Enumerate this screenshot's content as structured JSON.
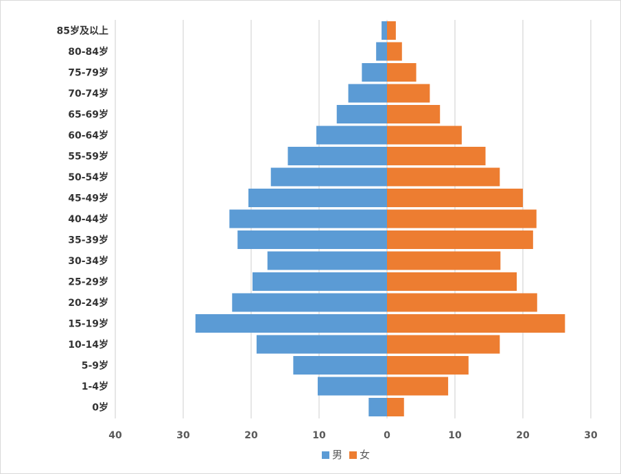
{
  "chart_data": {
    "type": "bar",
    "orientation": "horizontal",
    "layout": "population-pyramid",
    "categories": [
      "0岁",
      "1-4岁",
      "5-9岁",
      "10-14岁",
      "15-19岁",
      "20-24岁",
      "25-29岁",
      "30-34岁",
      "35-39岁",
      "40-44岁",
      "45-49岁",
      "50-54岁",
      "55-59岁",
      "60-64岁",
      "65-69岁",
      "70-74岁",
      "75-79岁",
      "80-84岁",
      "85岁及以上"
    ],
    "series": [
      {
        "name": "男",
        "side": "left",
        "color": "#5b9bd5",
        "values": [
          2.7,
          10.2,
          13.8,
          19.2,
          28.2,
          22.8,
          19.8,
          17.6,
          22.0,
          23.2,
          20.4,
          17.1,
          14.6,
          10.4,
          7.4,
          5.7,
          3.7,
          1.6,
          0.8
        ]
      },
      {
        "name": "女",
        "side": "right",
        "color": "#ed7d31",
        "values": [
          2.5,
          9.0,
          12.0,
          16.6,
          26.2,
          22.1,
          19.1,
          16.7,
          21.5,
          22.0,
          20.0,
          16.6,
          14.5,
          11.0,
          7.8,
          6.3,
          4.3,
          2.2,
          1.3
        ]
      }
    ],
    "xaxis": {
      "ticks": [
        -40,
        -30,
        -20,
        -10,
        0,
        10,
        20,
        30
      ],
      "tick_labels": [
        "40",
        "30",
        "20",
        "10",
        "0",
        "10",
        "20",
        "30"
      ],
      "range": [
        -40,
        30
      ]
    },
    "grid": "vertical",
    "legend": {
      "position": "bottom",
      "entries": [
        "男",
        "女"
      ]
    },
    "title": "",
    "xlabel": "",
    "ylabel": ""
  }
}
